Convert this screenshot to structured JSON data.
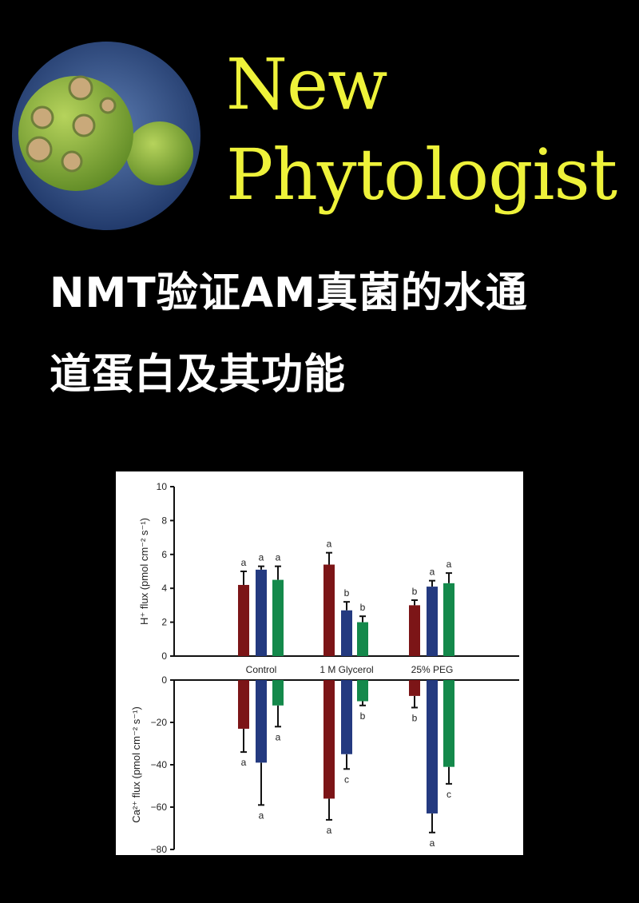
{
  "journal": {
    "line1": "New",
    "line2": "Phytologist",
    "accent_color": "#eef23a"
  },
  "headline": {
    "line1": "NMT验证AM真菌的水通",
    "line2": "道蛋白及其功能"
  },
  "chart_data": [
    {
      "type": "bar",
      "ylabel": "H⁺ flux (pmol cm⁻² s⁻¹)",
      "categories": [
        "Control",
        "1 M Glycerol",
        "25% PEG"
      ],
      "ylim": [
        0,
        10
      ],
      "yticks": [
        0,
        2,
        4,
        6,
        8,
        10
      ],
      "series_colors": [
        "#7c1517",
        "#243a80",
        "#14894b"
      ],
      "series": [
        {
          "values": [
            4.2,
            5.4,
            3.0
          ],
          "errors": [
            0.8,
            0.7,
            0.3
          ],
          "letters": [
            "a",
            "a",
            "b"
          ]
        },
        {
          "values": [
            5.1,
            2.7,
            4.1
          ],
          "errors": [
            0.2,
            0.5,
            0.35
          ],
          "letters": [
            "a",
            "b",
            "a"
          ]
        },
        {
          "values": [
            4.5,
            2.0,
            4.3
          ],
          "errors": [
            0.8,
            0.35,
            0.6
          ],
          "letters": [
            "a",
            "b",
            "a"
          ]
        }
      ]
    },
    {
      "type": "bar",
      "ylabel": "Ca²⁺ flux (pmol cm⁻² s⁻¹)",
      "categories": [
        "Control",
        "1 M Glycerol",
        "25% PEG"
      ],
      "ylim": [
        -80,
        0
      ],
      "yticks": [
        0,
        -20,
        -40,
        -60,
        -80
      ],
      "series_colors": [
        "#7c1517",
        "#243a80",
        "#14894b"
      ],
      "series": [
        {
          "values": [
            -23,
            -56,
            -7.5
          ],
          "errors": [
            11,
            10,
            5.5
          ],
          "letters": [
            "a",
            "a",
            "b"
          ]
        },
        {
          "values": [
            -39,
            -35,
            -63
          ],
          "errors": [
            20,
            7,
            9
          ],
          "letters": [
            "a",
            "c",
            "a"
          ]
        },
        {
          "values": [
            -12,
            -10,
            -41
          ],
          "errors": [
            10,
            2,
            8
          ],
          "letters": [
            "a",
            "b",
            "c"
          ]
        }
      ]
    }
  ]
}
